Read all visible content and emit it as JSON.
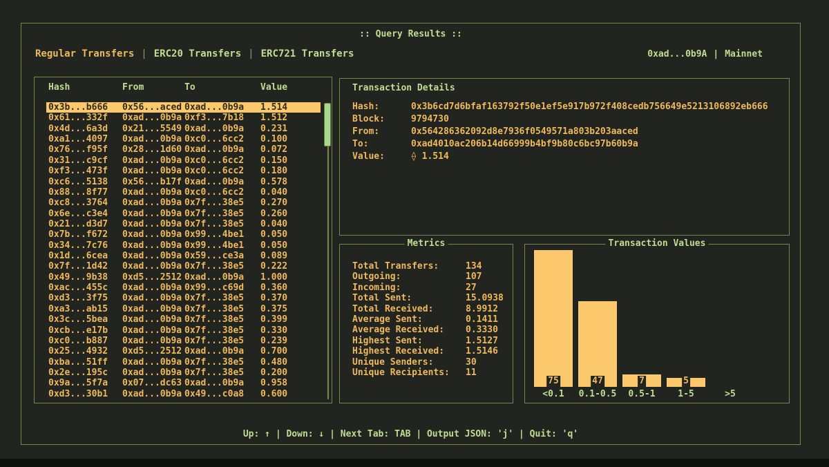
{
  "window": {
    "title": ":: Query Results ::",
    "account": "0xad...0b9A",
    "separator": "|",
    "network": "Mainnet"
  },
  "tabs": [
    {
      "label": "Regular Transfers",
      "active": true
    },
    {
      "label": "ERC20 Transfers",
      "active": false
    },
    {
      "label": "ERC721 Transfers",
      "active": false
    }
  ],
  "table": {
    "columns": [
      "Hash",
      "From",
      "To",
      "Value"
    ],
    "selected_index": 0,
    "rows": [
      [
        "0x3b...b666",
        "0x56...aced",
        "0xad...0b9a",
        "1.514"
      ],
      [
        "0x61...332f",
        "0xad...0b9a",
        "0xf3...7b18",
        "1.512"
      ],
      [
        "0x4d...6a3d",
        "0x21...5549",
        "0xad...0b9a",
        "0.231"
      ],
      [
        "0xa1...4097",
        "0xad...0b9a",
        "0xc0...6cc2",
        "0.100"
      ],
      [
        "0x76...f95f",
        "0x28...1d60",
        "0xad...0b9a",
        "0.072"
      ],
      [
        "0x31...c9cf",
        "0xad...0b9a",
        "0xc0...6cc2",
        "0.150"
      ],
      [
        "0xf3...473f",
        "0xad...0b9a",
        "0xc0...6cc2",
        "0.180"
      ],
      [
        "0xc6...5138",
        "0x56...b17f",
        "0xad...0b9a",
        "0.578"
      ],
      [
        "0x88...8f77",
        "0xad...0b9a",
        "0xc0...6cc2",
        "0.040"
      ],
      [
        "0xc8...3764",
        "0xad...0b9a",
        "0x7f...38e5",
        "0.270"
      ],
      [
        "0x6e...c3e4",
        "0xad...0b9a",
        "0x7f...38e5",
        "0.260"
      ],
      [
        "0x21...d3d7",
        "0xad...0b9a",
        "0x7f...38e5",
        "0.040"
      ],
      [
        "0x7b...f672",
        "0xad...0b9a",
        "0x99...4be1",
        "0.050"
      ],
      [
        "0x34...7c76",
        "0xad...0b9a",
        "0x99...4be1",
        "0.050"
      ],
      [
        "0x1d...6cea",
        "0xad...0b9a",
        "0x59...ce3a",
        "0.089"
      ],
      [
        "0x7f...1d42",
        "0xad...0b9a",
        "0x7f...38e5",
        "0.222"
      ],
      [
        "0x49...9b38",
        "0xd5...2512",
        "0xad...0b9a",
        "1.000"
      ],
      [
        "0xac...455c",
        "0xad...0b9a",
        "0x99...c69d",
        "0.360"
      ],
      [
        "0xd3...3f75",
        "0xad...0b9a",
        "0x7f...38e5",
        "0.370"
      ],
      [
        "0xa3...ab15",
        "0xad...0b9a",
        "0x7f...38e5",
        "0.375"
      ],
      [
        "0x3c...5bea",
        "0xad...0b9a",
        "0x7f...38e5",
        "0.399"
      ],
      [
        "0xcb...e17b",
        "0xad...0b9a",
        "0x7f...38e5",
        "0.330"
      ],
      [
        "0xc0...b887",
        "0xad...0b9a",
        "0x7f...38e5",
        "0.239"
      ],
      [
        "0x25...4932",
        "0xd5...2512",
        "0xad...0b9a",
        "0.700"
      ],
      [
        "0xba...51ff",
        "0xad...0b9a",
        "0x7f...38e5",
        "0.480"
      ],
      [
        "0x2e...195c",
        "0xad...0b9a",
        "0x7f...38e5",
        "0.200"
      ],
      [
        "0x9a...5f7a",
        "0x07...dc63",
        "0xad...0b9a",
        "0.958"
      ],
      [
        "0xd3...30b1",
        "0xad...0b9a",
        "0x49...c0a8",
        "0.600"
      ]
    ]
  },
  "details": {
    "title": "Transaction Details",
    "fields": [
      {
        "label": "Hash:",
        "value": "0x3b6cd7d6bfaf163792f50e1ef5e917b972f408cedb756649e5213106892eb666"
      },
      {
        "label": "Block:",
        "value": "9794730"
      },
      {
        "label": "From:",
        "value": "0x564286362092d8e7936f0549571a803b203aaced"
      },
      {
        "label": "To:",
        "value": "0xad4010ac206b14d66999b4bf9b80c6bc97b60b9a"
      },
      {
        "label": "Value:",
        "value": "⟠ 1.514"
      }
    ]
  },
  "metrics": {
    "title": "Metrics",
    "items": [
      {
        "label": "Total Transfers:",
        "value": "134"
      },
      {
        "label": "Outgoing:",
        "value": "107"
      },
      {
        "label": "Incoming:",
        "value": "27"
      },
      {
        "label": "Total Sent:",
        "value": "15.0938"
      },
      {
        "label": "Total Received:",
        "value": "8.9912"
      },
      {
        "label": "Average Sent:",
        "value": "0.1411"
      },
      {
        "label": "Average Received:",
        "value": "0.3330"
      },
      {
        "label": "Highest Sent:",
        "value": "1.5127"
      },
      {
        "label": "Highest Received:",
        "value": "1.5146"
      },
      {
        "label": "Unique Senders:",
        "value": "30"
      },
      {
        "label": "Unique Recipients:",
        "value": "11"
      }
    ]
  },
  "chart_data": {
    "type": "bar",
    "title": "Transaction Values",
    "categories": [
      "<0.1",
      "0.1-0.5",
      "0.5-1",
      "1-5",
      ">5"
    ],
    "values": [
      75,
      47,
      7,
      5,
      0
    ],
    "xlabel": "",
    "ylabel": "",
    "ylim": [
      0,
      80
    ],
    "grid": false,
    "legend": false,
    "bar_color": "#fbc86b",
    "value_labels": true
  },
  "footer": {
    "text": "Up: ↑ | Down: ↓ | Next Tab: TAB | Output JSON: 'j' | Quit: 'q'"
  },
  "colors": {
    "background": "#22241f",
    "border": "#78874e",
    "text_green": "#c1dd91",
    "text_orange": "#efb95d",
    "highlight": "#fbc86b",
    "scroll_thumb": "#a8d78f"
  }
}
